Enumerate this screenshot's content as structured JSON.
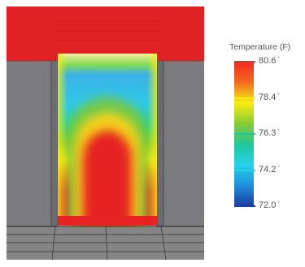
{
  "legend": {
    "title": "Temperature (F)",
    "unit_symbol": "°",
    "ticks": [
      {
        "label": "80.6",
        "color": "#e63222"
      },
      {
        "label": "78.4",
        "color": "#f6ee12"
      },
      {
        "label": "76.3",
        "color": "#1fc79a"
      },
      {
        "label": "74.2",
        "color": "#27d0ea"
      },
      {
        "label": "72.0",
        "color": "#1f3b9d"
      }
    ],
    "gradient": [
      "#ef2b22",
      "#f36b1e",
      "#f6ee12",
      "#86cc36",
      "#1fc79a",
      "#27d0ea",
      "#1d8fdc",
      "#1f3b9d"
    ]
  },
  "scene": {
    "top_color": "#e02224",
    "wall_color": "#7b7b7f",
    "floor_color": "#858585"
  }
}
